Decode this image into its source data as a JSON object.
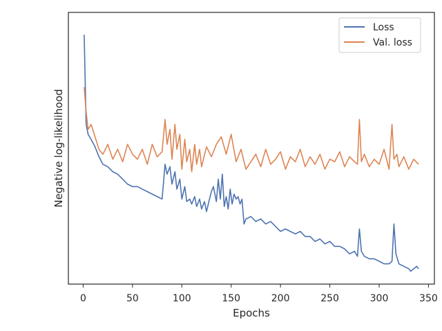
{
  "chart_data": {
    "type": "line",
    "title": "",
    "xlabel": "Epochs",
    "ylabel": "Negative log-likelihood",
    "xlim": [
      -15,
      356
    ],
    "xticks": [
      0,
      50,
      100,
      150,
      200,
      250,
      300,
      350
    ],
    "ylim": [
      0,
      1
    ],
    "yticks_shown": false,
    "grid": false,
    "legend_position": "top-right",
    "colors": {
      "Loss": "#4c72b0",
      "Val. loss": "#dd8452"
    },
    "series": [
      {
        "name": "Loss",
        "x": [
          1,
          3,
          5,
          8,
          12,
          16,
          20,
          25,
          30,
          35,
          40,
          45,
          50,
          55,
          60,
          65,
          70,
          75,
          80,
          83,
          85,
          88,
          90,
          93,
          95,
          98,
          100,
          103,
          105,
          108,
          110,
          113,
          115,
          118,
          120,
          123,
          125,
          128,
          130,
          132,
          135,
          137,
          139,
          141,
          143,
          145,
          147,
          149,
          151,
          153,
          155,
          157,
          159,
          161,
          163,
          165,
          170,
          175,
          180,
          185,
          190,
          195,
          200,
          205,
          210,
          215,
          220,
          225,
          230,
          235,
          240,
          245,
          250,
          255,
          260,
          265,
          270,
          275,
          278,
          280,
          282,
          285,
          290,
          295,
          300,
          305,
          310,
          313,
          315,
          317,
          320,
          325,
          330,
          332,
          335,
          338,
          340
        ],
        "y": [
          0.96,
          0.6,
          0.56,
          0.54,
          0.51,
          0.47,
          0.44,
          0.43,
          0.41,
          0.4,
          0.38,
          0.36,
          0.35,
          0.35,
          0.34,
          0.33,
          0.32,
          0.31,
          0.3,
          0.44,
          0.4,
          0.43,
          0.36,
          0.41,
          0.34,
          0.38,
          0.3,
          0.35,
          0.29,
          0.3,
          0.28,
          0.31,
          0.27,
          0.3,
          0.26,
          0.29,
          0.25,
          0.3,
          0.33,
          0.35,
          0.29,
          0.38,
          0.3,
          0.4,
          0.27,
          0.31,
          0.26,
          0.34,
          0.28,
          0.32,
          0.3,
          0.31,
          0.28,
          0.3,
          0.2,
          0.22,
          0.23,
          0.21,
          0.22,
          0.2,
          0.21,
          0.19,
          0.17,
          0.18,
          0.17,
          0.16,
          0.17,
          0.15,
          0.15,
          0.13,
          0.14,
          0.12,
          0.13,
          0.11,
          0.11,
          0.1,
          0.08,
          0.09,
          0.07,
          0.18,
          0.09,
          0.07,
          0.06,
          0.06,
          0.05,
          0.04,
          0.04,
          0.05,
          0.2,
          0.08,
          0.04,
          0.03,
          0.02,
          0.01,
          0.02,
          0.03,
          0.02
        ]
      },
      {
        "name": "Val. loss",
        "x": [
          1,
          3,
          5,
          8,
          12,
          16,
          20,
          25,
          30,
          35,
          40,
          45,
          50,
          55,
          60,
          65,
          70,
          75,
          80,
          83,
          85,
          88,
          90,
          93,
          95,
          98,
          100,
          103,
          105,
          108,
          110,
          113,
          115,
          118,
          120,
          125,
          130,
          135,
          140,
          145,
          150,
          155,
          160,
          165,
          170,
          175,
          180,
          185,
          190,
          195,
          200,
          205,
          210,
          215,
          220,
          225,
          230,
          235,
          240,
          245,
          250,
          255,
          260,
          265,
          270,
          275,
          278,
          280,
          282,
          285,
          290,
          295,
          300,
          305,
          310,
          313,
          315,
          318,
          320,
          325,
          330,
          335,
          340
        ],
        "y": [
          0.75,
          0.65,
          0.58,
          0.6,
          0.55,
          0.5,
          0.48,
          0.52,
          0.46,
          0.5,
          0.45,
          0.52,
          0.48,
          0.46,
          0.5,
          0.44,
          0.52,
          0.47,
          0.49,
          0.62,
          0.52,
          0.58,
          0.46,
          0.6,
          0.5,
          0.56,
          0.42,
          0.54,
          0.45,
          0.5,
          0.41,
          0.52,
          0.44,
          0.5,
          0.43,
          0.51,
          0.47,
          0.52,
          0.55,
          0.48,
          0.56,
          0.45,
          0.5,
          0.42,
          0.45,
          0.48,
          0.43,
          0.5,
          0.44,
          0.46,
          0.49,
          0.42,
          0.47,
          0.45,
          0.5,
          0.43,
          0.47,
          0.44,
          0.48,
          0.42,
          0.46,
          0.45,
          0.49,
          0.43,
          0.47,
          0.45,
          0.44,
          0.62,
          0.45,
          0.48,
          0.43,
          0.46,
          0.44,
          0.5,
          0.42,
          0.6,
          0.46,
          0.48,
          0.43,
          0.47,
          0.42,
          0.46,
          0.44
        ]
      }
    ]
  }
}
